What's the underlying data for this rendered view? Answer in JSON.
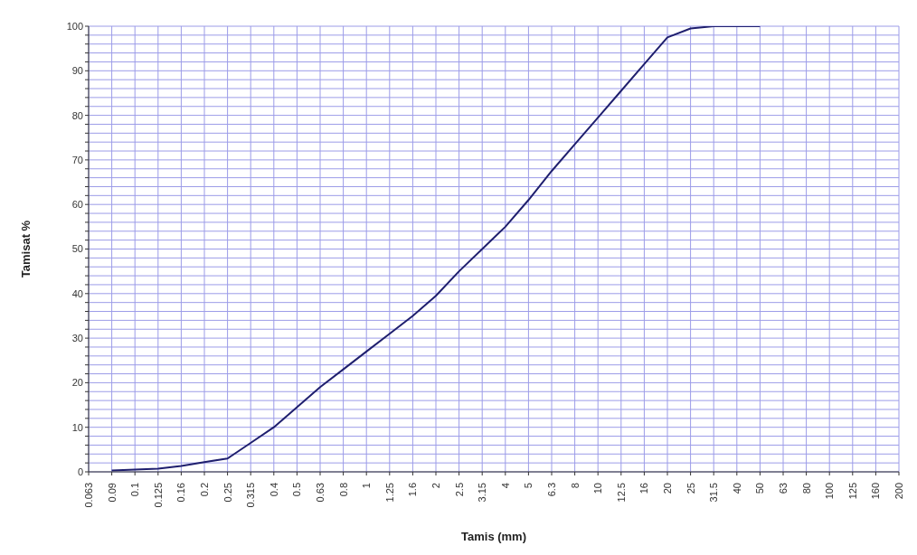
{
  "chart_data": {
    "type": "line",
    "xlabel": "Tamis (mm)",
    "ylabel": "Tamisat %",
    "categories": [
      "0.063",
      "0.09",
      "0.1",
      "0.125",
      "0.16",
      "0.2",
      "0.25",
      "0.315",
      "0.4",
      "0.5",
      "0.63",
      "0.8",
      "1",
      "1.25",
      "1.6",
      "2",
      "2.5",
      "3.15",
      "4",
      "5",
      "6.3",
      "8",
      "10",
      "12.5",
      "16",
      "20",
      "25",
      "31.5",
      "40",
      "50",
      "63",
      "80",
      "100",
      "125",
      "160",
      "200"
    ],
    "series": [
      {
        "color": "#1f1f6e",
        "values": [
          null,
          0.3,
          0.5,
          0.7,
          1.3,
          2.2,
          3,
          6.5,
          10,
          14.5,
          19,
          23,
          27,
          31,
          35,
          39.5,
          45,
          50,
          55,
          61,
          67.5,
          73.5,
          79.5,
          85.5,
          91.5,
          97.5,
          99.5,
          100,
          100,
          100,
          null,
          null,
          null,
          null,
          null,
          null
        ]
      }
    ],
    "ylim": [
      0,
      100
    ],
    "yticks": [
      0,
      {
        "value": 2,
        "label": null
      },
      {
        "value": 4,
        "label": null
      },
      {
        "value": 6,
        "label": null
      },
      {
        "value": 8,
        "label": null
      },
      10,
      {
        "value": 12,
        "label": null
      },
      {
        "value": 14,
        "label": null
      },
      {
        "value": 16,
        "label": null
      },
      {
        "value": 18,
        "label": null
      },
      20,
      {
        "value": 22,
        "label": null
      },
      {
        "value": 24,
        "label": null
      },
      {
        "value": 26,
        "label": null
      },
      {
        "value": 28,
        "label": null
      },
      30,
      {
        "value": 32,
        "label": null
      },
      {
        "value": 34,
        "label": null
      },
      {
        "value": 36,
        "label": null
      },
      {
        "value": 38,
        "label": null
      },
      40,
      {
        "value": 42,
        "label": null
      },
      {
        "value": 44,
        "label": null
      },
      {
        "value": 46,
        "label": null
      },
      {
        "value": 48,
        "label": null
      },
      50,
      {
        "value": 52,
        "label": null
      },
      {
        "value": 54,
        "label": null
      },
      {
        "value": 56,
        "label": null
      },
      {
        "value": 58,
        "label": null
      },
      60,
      {
        "value": 62,
        "label": null
      },
      {
        "value": 64,
        "label": null
      },
      {
        "value": 66,
        "label": null
      },
      {
        "value": 68,
        "label": null
      },
      70,
      {
        "value": 72,
        "label": null
      },
      {
        "value": 74,
        "label": null
      },
      {
        "value": 76,
        "label": null
      },
      {
        "value": 78,
        "label": null
      },
      80,
      {
        "value": 82,
        "label": null
      },
      {
        "value": 84,
        "label": null
      },
      {
        "value": 86,
        "label": null
      },
      {
        "value": 88,
        "label": null
      },
      90,
      {
        "value": 92,
        "label": null
      },
      {
        "value": 94,
        "label": null
      },
      {
        "value": 96,
        "label": null
      },
      {
        "value": 98,
        "label": null
      },
      100
    ],
    "grid": true,
    "legend": false,
    "marker": "none",
    "line_style": "solid"
  }
}
